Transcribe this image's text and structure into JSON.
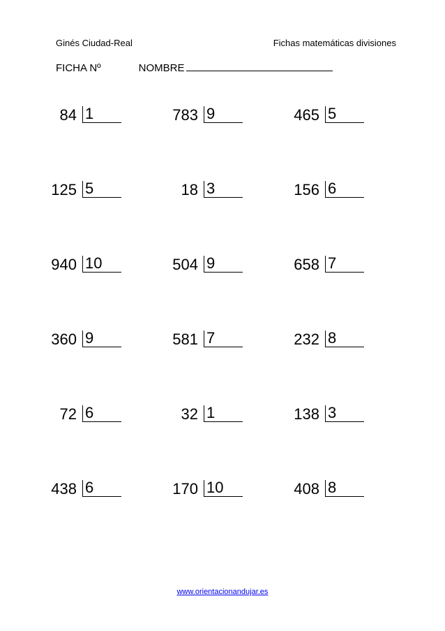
{
  "header": {
    "author": "Ginés Ciudad-Real",
    "title": "Fichas matemáticas divisiones",
    "ficha_label": "FICHA Nº",
    "nombre_label": "NOMBRE"
  },
  "problems": [
    [
      {
        "dividend": "84",
        "divisor": "1"
      },
      {
        "dividend": "783",
        "divisor": "9"
      },
      {
        "dividend": "465",
        "divisor": "5"
      }
    ],
    [
      {
        "dividend": "125",
        "divisor": "5"
      },
      {
        "dividend": "18",
        "divisor": "3"
      },
      {
        "dividend": "156",
        "divisor": "6"
      }
    ],
    [
      {
        "dividend": "940",
        "divisor": "10"
      },
      {
        "dividend": "504",
        "divisor": "9"
      },
      {
        "dividend": "658",
        "divisor": "7"
      }
    ],
    [
      {
        "dividend": "360",
        "divisor": "9"
      },
      {
        "dividend": "581",
        "divisor": "7"
      },
      {
        "dividend": "232",
        "divisor": "8"
      }
    ],
    [
      {
        "dividend": "72",
        "divisor": "6"
      },
      {
        "dividend": "32",
        "divisor": "1"
      },
      {
        "dividend": "138",
        "divisor": "3"
      }
    ],
    [
      {
        "dividend": "438",
        "divisor": "6"
      },
      {
        "dividend": "170",
        "divisor": "10"
      },
      {
        "dividend": "408",
        "divisor": "8"
      }
    ]
  ],
  "footer": {
    "url": "www.orientacionandujar.es"
  },
  "colors": {
    "text": "#000000",
    "link": "#0000ee",
    "background": "#ffffff"
  }
}
